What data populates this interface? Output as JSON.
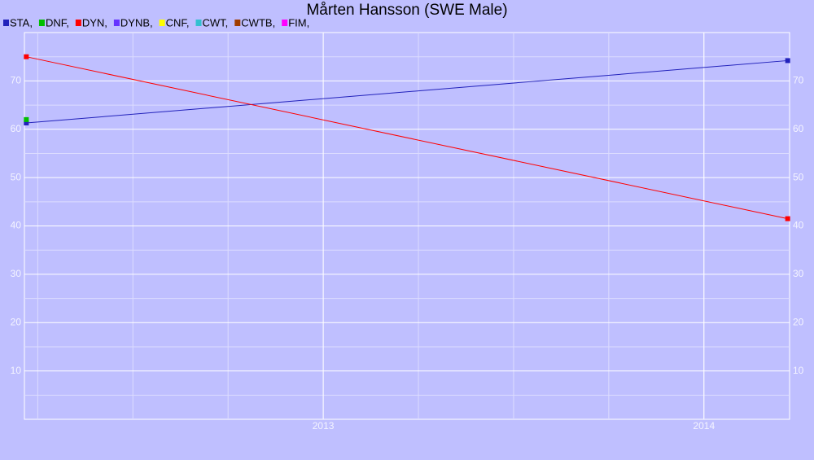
{
  "chart_data": {
    "type": "line",
    "title": "Mårten Hansson (SWE Male)",
    "x": [
      2012.22,
      2014.22
    ],
    "xlim": [
      2012.215,
      2014.225
    ],
    "xticks": [
      2013,
      2014
    ],
    "ylim": [
      0,
      80
    ],
    "yticks": [
      10,
      20,
      30,
      40,
      50,
      60,
      70
    ],
    "grid": true,
    "legend": "top-left",
    "series": [
      {
        "name": "STA,",
        "color": "#2222bb",
        "values": [
          61.3,
          74.2
        ]
      },
      {
        "name": "DNF,",
        "color": "#00c000",
        "values": [
          62,
          null
        ]
      },
      {
        "name": "DYN,",
        "color": "#ff0000",
        "values": [
          75,
          41.5
        ]
      },
      {
        "name": "DYNB,",
        "color": "#6633ff",
        "values": [
          null,
          null
        ]
      },
      {
        "name": "CNF,",
        "color": "#ffff00",
        "values": [
          null,
          null
        ]
      },
      {
        "name": "CWT,",
        "color": "#33c0d0",
        "values": [
          null,
          null
        ]
      },
      {
        "name": "CWTB,",
        "color": "#a03c00",
        "values": [
          null,
          null
        ]
      },
      {
        "name": "FIM,",
        "color": "#ff00ff",
        "values": [
          null,
          null
        ]
      }
    ]
  }
}
